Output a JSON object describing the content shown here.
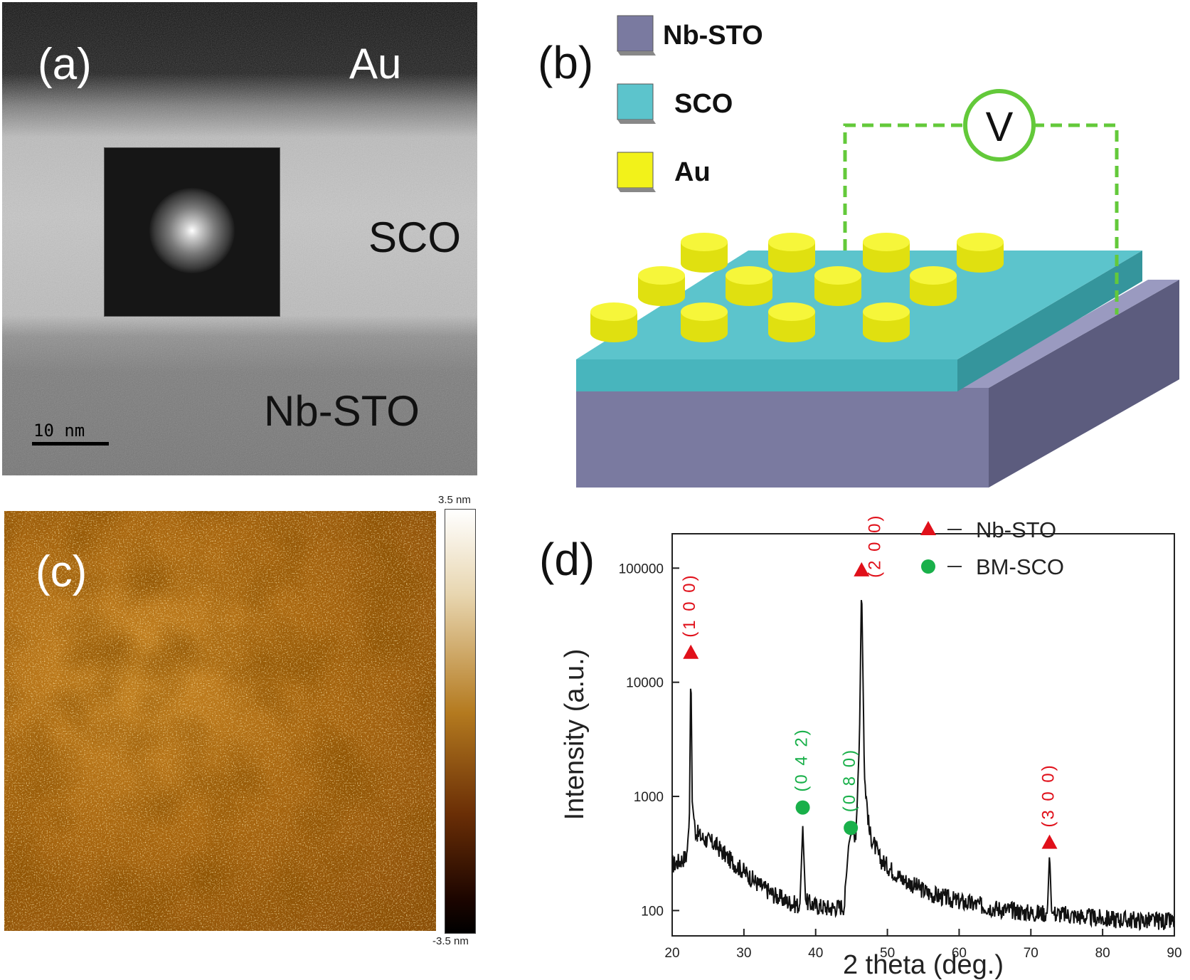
{
  "panel_a": {
    "label": "(a)",
    "layers": {
      "au": "Au",
      "sco": "SCO",
      "nbsto": "Nb-STO"
    },
    "scale_bar": "10 nm"
  },
  "panel_b": {
    "label": "(b)",
    "legend": [
      {
        "name": "Nb-STO",
        "color": "#7a7aa0"
      },
      {
        "name": "SCO",
        "color": "#5cc4cc"
      },
      {
        "name": "Au",
        "color": "#f2f21a"
      }
    ],
    "voltmeter": "V"
  },
  "panel_c": {
    "label": "(c)",
    "colorbar_max": "3.5 nm",
    "colorbar_min": "-3.5 nm"
  },
  "chart_data": {
    "type": "line",
    "panel_label": "(d)",
    "xlabel": "2 theta (deg.)",
    "ylabel": "Intensity (a.u.)",
    "xlim": [
      20,
      90
    ],
    "ylim": [
      60,
      200000
    ],
    "yscale": "log",
    "xticks": [
      "20",
      "30",
      "40",
      "50",
      "60",
      "70",
      "80",
      "90"
    ],
    "yticks": [
      "100",
      "1000",
      "10000",
      "100000"
    ],
    "legend": [
      {
        "marker": "triangle",
        "color": "#e0101a",
        "label": "Nb-STO"
      },
      {
        "marker": "circle",
        "color": "#19b04a",
        "label": "BM-SCO"
      }
    ],
    "peaks": [
      {
        "x": 22.6,
        "y": 15000,
        "hkl": "(1 0 0)",
        "phase": "Nb-STO",
        "marker_y": 18000
      },
      {
        "x": 38.2,
        "y": 550,
        "hkl": "(0 4 2)",
        "phase": "BM-SCO",
        "marker_y": 800
      },
      {
        "x": 44.9,
        "y": 460,
        "hkl": "(0 8 0)",
        "phase": "BM-SCO",
        "marker_y": 530
      },
      {
        "x": 46.4,
        "y": 75000,
        "hkl": "(2 0 0)",
        "phase": "Nb-STO",
        "marker_y": 95000
      },
      {
        "x": 72.6,
        "y": 320,
        "hkl": "(3 0 0)",
        "phase": "Nb-STO",
        "marker_y": 390
      }
    ],
    "series": [
      {
        "x": [
          20,
          21,
          22,
          22.4,
          22.6,
          22.8,
          23.2,
          24,
          26,
          28,
          30,
          32,
          34,
          36,
          37.8,
          38.2,
          38.6,
          40,
          42,
          44,
          44.6,
          44.9,
          45.6,
          46.1,
          46.4,
          46.8,
          47.5,
          49,
          52,
          56,
          60,
          65,
          70,
          72.3,
          72.6,
          72.9,
          76,
          80,
          85,
          90
        ],
        "y": [
          250,
          270,
          300,
          600,
          15000,
          900,
          500,
          440,
          380,
          280,
          220,
          170,
          140,
          120,
          110,
          550,
          120,
          110,
          105,
          110,
          380,
          460,
          480,
          3000,
          75000,
          1500,
          480,
          280,
          190,
          140,
          120,
          105,
          95,
          95,
          320,
          95,
          90,
          85,
          82,
          80
        ]
      }
    ]
  }
}
